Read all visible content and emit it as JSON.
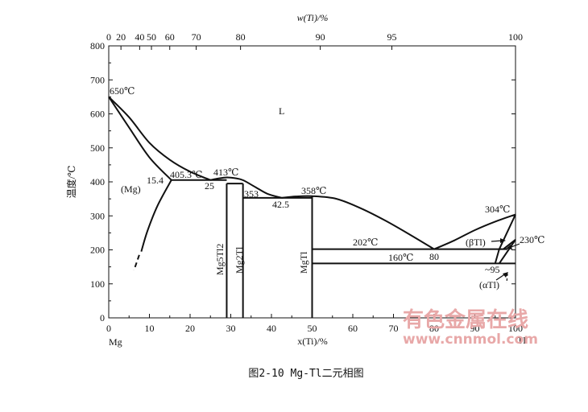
{
  "figure": {
    "caption": "图2-10 Mg-Tl二元相图",
    "top_axis_title": "w(Ti)/%",
    "bottom_axis_title": "x(Ti)/%",
    "left_axis_title": "温度/℃",
    "top_ticks": [
      {
        "label": "0",
        "x_at": 0
      },
      {
        "label": "20",
        "x_at": 3
      },
      {
        "label": "40",
        "x_at": 7.6
      },
      {
        "label": "50",
        "x_at": 10.5
      },
      {
        "label": "60",
        "x_at": 15
      },
      {
        "label": "70",
        "x_at": 21.5
      },
      {
        "label": "80",
        "x_at": 32.4
      },
      {
        "label": "90",
        "x_at": 52
      },
      {
        "label": "95",
        "x_at": 69.6
      },
      {
        "label": "100",
        "x_at": 100
      }
    ],
    "bottom_ticks": [
      "0",
      "10",
      "20",
      "30",
      "40",
      "50",
      "60",
      "70",
      "80",
      "90",
      "100"
    ],
    "y_ticks": [
      "0",
      "100",
      "200",
      "300",
      "400",
      "500",
      "600",
      "700",
      "800"
    ],
    "element_left": "Mg",
    "element_right": "Tl"
  },
  "chart_data": {
    "type": "phase-diagram",
    "title": "Mg-Tl二元相图",
    "xlabel": "x(Ti)/%",
    "ylabel": "温度/℃",
    "xlim": [
      0,
      100
    ],
    "ylim": [
      0,
      800
    ],
    "liquidus": [
      {
        "name": "Mg-liquidus",
        "points": [
          [
            0,
            650
          ],
          [
            5,
            590
          ],
          [
            10,
            515
          ],
          [
            15,
            465
          ],
          [
            20,
            430
          ],
          [
            25,
            405.3
          ]
        ]
      },
      {
        "name": "Mg5Tl2-Mg2Tl-liquidus",
        "points": [
          [
            25,
            405.3
          ],
          [
            27,
            410
          ],
          [
            29,
            413
          ],
          [
            31,
            411
          ],
          [
            33,
            405
          ],
          [
            36,
            385
          ],
          [
            39,
            365
          ],
          [
            42.5,
            353
          ]
        ]
      },
      {
        "name": "MgTl-liquidus",
        "points": [
          [
            42.5,
            353
          ],
          [
            46,
            357
          ],
          [
            50,
            358
          ],
          [
            56,
            350
          ],
          [
            62,
            322
          ],
          [
            68,
            286
          ],
          [
            74,
            245
          ],
          [
            80,
            202
          ]
        ]
      },
      {
        "name": "Tl-liquidus",
        "points": [
          [
            80,
            202
          ],
          [
            85,
            228
          ],
          [
            90,
            258
          ],
          [
            95,
            283
          ],
          [
            100,
            304
          ]
        ]
      }
    ],
    "solidus_mg": [
      [
        0,
        650
      ],
      [
        5,
        560
      ],
      [
        10,
        472
      ],
      [
        15.4,
        405.3
      ]
    ],
    "solvus_mg": [
      [
        15.4,
        405.3
      ],
      [
        12,
        330
      ],
      [
        9.5,
        255
      ],
      [
        8,
        195
      ]
    ],
    "solvus_mg_dashed": [
      [
        7.5,
        185
      ],
      [
        6.2,
        140
      ]
    ],
    "eutectic_lines": [
      {
        "x": [
          15.4,
          29
        ],
        "t": 405.3
      },
      {
        "x": [
          33,
          50
        ],
        "t": 353
      },
      {
        "x": [
          50,
          98
        ],
        "t": 202
      }
    ],
    "compound_lines": [
      {
        "x": 29,
        "t": [
          0,
          395
        ]
      },
      {
        "x": 33,
        "t": [
          0,
          395
        ]
      },
      {
        "x": 50,
        "t": [
          0,
          358
        ]
      }
    ],
    "other_lines": [
      {
        "x": [
          29,
          33
        ],
        "t": 395
      },
      {
        "x": [
          50,
          100
        ],
        "t": 160
      }
    ],
    "tl_phase_lines": [
      {
        "points": [
          [
            100,
            304
          ],
          [
            96,
            202
          ]
        ]
      },
      {
        "points": [
          [
            96,
            202
          ],
          [
            95,
            160
          ]
        ]
      },
      {
        "points": [
          [
            100,
            230
          ],
          [
            97,
            202
          ]
        ]
      },
      {
        "points": [
          [
            100,
            230
          ],
          [
            96,
            160
          ]
        ]
      }
    ],
    "labels": {
      "melt_mg": "650℃",
      "liquid": "L",
      "mg_phase": "(Mg)",
      "solubility": "15.4",
      "eutectic1_temp": "405.3℃",
      "eutectic1_comp": "25",
      "peak": "413℃",
      "eutectic2_temp": "353",
      "eutectic2_comp": "42.5",
      "mgtl_peak": "358℃",
      "eutectic3_temp": "202℃",
      "eutectic3_comp": "80",
      "tl_melt": "304℃",
      "beta_tl": "(βTl)",
      "trans_temp": "230℃",
      "line160": "160℃",
      "about95": "~95",
      "alpha_tl": "(αTl)",
      "mg5tl2": "Mg5Tl2",
      "mg2tl": "Mg2Tl",
      "mgtl": "MgTl"
    }
  },
  "watermark": {
    "line1": "有色金属在线",
    "line2": "www.cnnmol.com"
  }
}
